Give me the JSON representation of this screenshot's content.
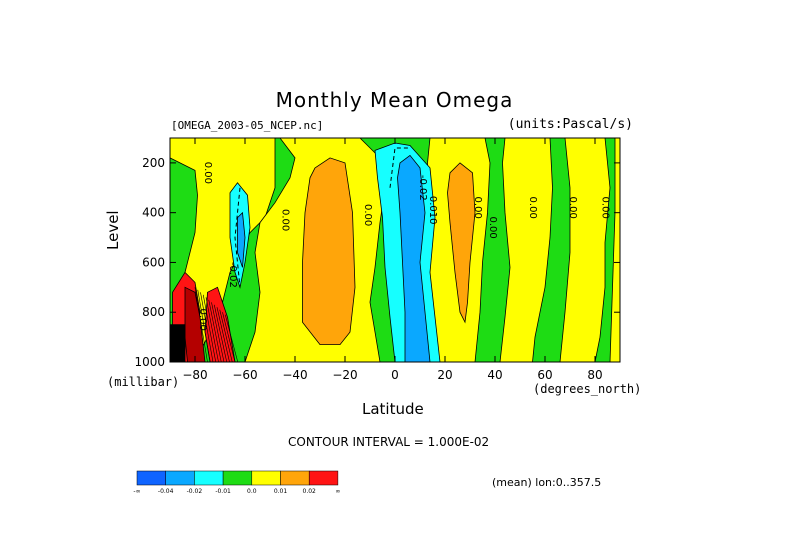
{
  "colors": {
    "blue": "#0f64ff",
    "lightblue": "#0aa8ff",
    "cyan": "#16ffff",
    "green": "#1edc14",
    "yellow": "#ffff00",
    "orange": "#ffa50a",
    "red": "#ff1414",
    "darkred": "#b40000",
    "black": "#000000"
  },
  "chart_data": {
    "type": "heatmap",
    "title": "Monthly Mean Omega",
    "file_label": "[OMEGA_2003-05_NCEP.nc]",
    "units_label": "(units:Pascal/s)",
    "xlabel": "Latitude",
    "x_unit": "(degrees_north)",
    "ylabel": "Level",
    "y_unit": "(millibar)",
    "xlim": [
      -90,
      90
    ],
    "ylim": [
      1000,
      100
    ],
    "x_ticks": [
      -80,
      -60,
      -40,
      -20,
      0,
      20,
      40,
      60,
      80
    ],
    "y_ticks": [
      200,
      400,
      600,
      800,
      1000
    ],
    "contour_interval": "CONTOUR INTERVAL = 1.000E-02",
    "mean_label": "(mean) lon:0..357.5",
    "colorbar": {
      "levels": [
        "-∞",
        "-0.04",
        "-0.02",
        "-0.01",
        "0.0",
        "0.01",
        "0.02",
        "∞"
      ],
      "colors": [
        "#0f64ff",
        "#0aa8ff",
        "#16ffff",
        "#1edc14",
        "#ffff00",
        "#ffa50a",
        "#ff1414"
      ]
    },
    "contour_labels": [
      {
        "text": "0.00",
        "lat": -76,
        "level": 240
      },
      {
        "text": "0.00",
        "lat": -45,
        "level": 430
      },
      {
        "text": "-0.02",
        "lat": -66,
        "level": 650
      },
      {
        "text": "0.00",
        "lat": -78,
        "level": 830
      },
      {
        "text": "0.00",
        "lat": -12,
        "level": 410
      },
      {
        "text": "-0.02",
        "lat": 10,
        "level": 300
      },
      {
        "text": "0.010",
        "lat": 14,
        "level": 390
      },
      {
        "text": "0.00",
        "lat": 32,
        "level": 380
      },
      {
        "text": "0.00",
        "lat": 38,
        "level": 460
      },
      {
        "text": "0.00",
        "lat": 54,
        "level": 380
      },
      {
        "text": "0.00",
        "lat": 70,
        "level": 380
      },
      {
        "text": "0.00",
        "lat": 83,
        "level": 380
      }
    ]
  }
}
